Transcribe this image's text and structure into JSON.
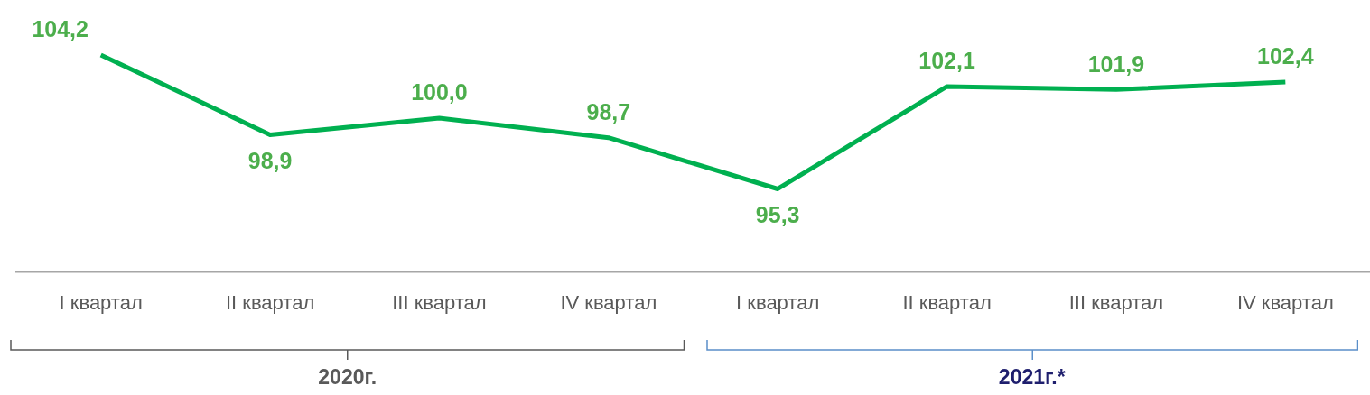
{
  "chart_data": {
    "type": "line",
    "categories": [
      "I квартал",
      "II квартал",
      "III квартал",
      "IV квартал",
      "I квартал",
      "II квартал",
      "III квартал",
      "IV квартал"
    ],
    "series": [
      {
        "color": "#00b050",
        "values": [
          104.2,
          98.9,
          100.0,
          98.7,
          95.3,
          102.1,
          101.9,
          102.4
        ],
        "value_labels": [
          "104,2",
          "98,9",
          "100,0",
          "98,7",
          "95,3",
          "102,1",
          "101,9",
          "102,4"
        ]
      }
    ],
    "annotations": [
      "2020г.",
      "2021г.*"
    ],
    "grid": false,
    "legend": false,
    "marker": "none",
    "line_style": "solid",
    "tick_labels": "x"
  }
}
